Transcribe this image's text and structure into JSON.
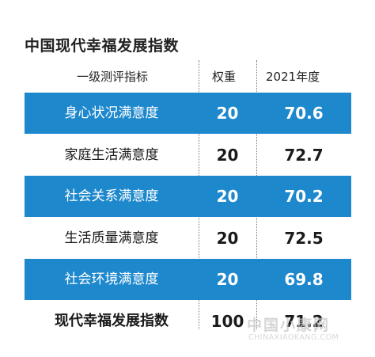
{
  "title": "中国现代幸福发展指数",
  "headers": {
    "indicator": "一级测评指标",
    "weight": "权重",
    "year": "2021年度"
  },
  "watermark": {
    "main": "中国小康网",
    "sub": "CHINAXIAOKANG.COM"
  },
  "colors": {
    "highlight_row": "#1e88cd",
    "text": "#1a1a1a"
  },
  "chart_data": {
    "type": "table",
    "title": "中国现代幸福发展指数",
    "columns": [
      "一级测评指标",
      "权重",
      "2021年度"
    ],
    "rows": [
      {
        "name": "身心状况满意度",
        "weight": "20",
        "score": "70.6",
        "highlight": true
      },
      {
        "name": "家庭生活满意度",
        "weight": "20",
        "score": "72.7",
        "highlight": false
      },
      {
        "name": "社会关系满意度",
        "weight": "20",
        "score": "70.2",
        "highlight": true
      },
      {
        "name": "生活质量满意度",
        "weight": "20",
        "score": "72.5",
        "highlight": false
      },
      {
        "name": "社会环境满意度",
        "weight": "20",
        "score": "69.8",
        "highlight": true
      },
      {
        "name": "现代幸福发展指数",
        "weight": "100",
        "score": "71.2",
        "highlight": false,
        "total": true
      }
    ]
  }
}
